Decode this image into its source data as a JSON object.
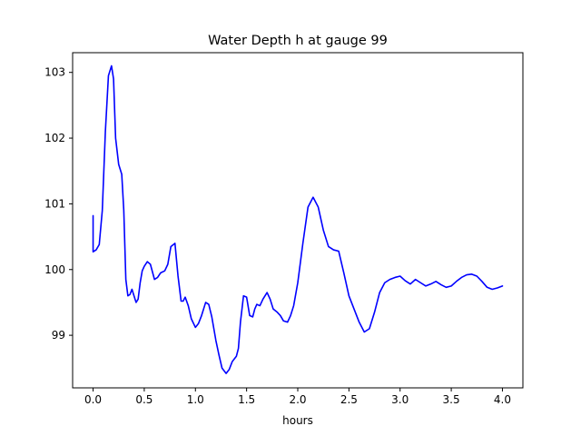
{
  "chart_data": {
    "type": "line",
    "title": "Water Depth h at gauge 99",
    "xlabel": "hours",
    "ylabel": "",
    "xlim": [
      -0.2,
      4.2
    ],
    "ylim": [
      98.2,
      103.3
    ],
    "x_ticks": [
      0.0,
      0.5,
      1.0,
      1.5,
      2.0,
      2.5,
      3.0,
      3.5,
      4.0
    ],
    "x_tick_labels": [
      "0.0",
      "0.5",
      "1.0",
      "1.5",
      "2.0",
      "2.5",
      "3.0",
      "3.5",
      "4.0"
    ],
    "y_ticks": [
      99,
      100,
      101,
      102,
      103
    ],
    "y_tick_labels": [
      "99",
      "100",
      "101",
      "102",
      "103"
    ],
    "grid": false,
    "series": [
      {
        "color": "#0000ff",
        "x": [
          0.0,
          0.0,
          0.03,
          0.06,
          0.09,
          0.12,
          0.15,
          0.18,
          0.2,
          0.22,
          0.25,
          0.28,
          0.3,
          0.32,
          0.34,
          0.36,
          0.38,
          0.4,
          0.42,
          0.44,
          0.46,
          0.48,
          0.5,
          0.53,
          0.56,
          0.6,
          0.63,
          0.66,
          0.7,
          0.73,
          0.76,
          0.8,
          0.83,
          0.86,
          0.88,
          0.9,
          0.93,
          0.96,
          1.0,
          1.03,
          1.06,
          1.1,
          1.13,
          1.16,
          1.2,
          1.23,
          1.26,
          1.3,
          1.33,
          1.36,
          1.38,
          1.4,
          1.42,
          1.44,
          1.47,
          1.5,
          1.53,
          1.56,
          1.58,
          1.6,
          1.63,
          1.66,
          1.7,
          1.73,
          1.76,
          1.8,
          1.83,
          1.86,
          1.9,
          1.93,
          1.96,
          2.0,
          2.05,
          2.1,
          2.15,
          2.2,
          2.25,
          2.3,
          2.35,
          2.4,
          2.45,
          2.5,
          2.55,
          2.6,
          2.65,
          2.7,
          2.75,
          2.8,
          2.85,
          2.9,
          2.95,
          3.0,
          3.05,
          3.1,
          3.15,
          3.2,
          3.25,
          3.3,
          3.35,
          3.4,
          3.45,
          3.5,
          3.55,
          3.6,
          3.65,
          3.7,
          3.75,
          3.8,
          3.85,
          3.9,
          3.95,
          4.0
        ],
        "y": [
          100.82,
          100.27,
          100.3,
          100.38,
          100.9,
          102.1,
          102.95,
          103.1,
          102.9,
          102.0,
          101.6,
          101.45,
          100.9,
          99.85,
          99.6,
          99.62,
          99.7,
          99.6,
          99.5,
          99.55,
          99.8,
          99.98,
          100.05,
          100.12,
          100.08,
          99.85,
          99.88,
          99.95,
          99.98,
          100.08,
          100.35,
          100.4,
          99.9,
          99.52,
          99.52,
          99.58,
          99.45,
          99.25,
          99.12,
          99.18,
          99.3,
          99.5,
          99.47,
          99.28,
          98.92,
          98.7,
          98.5,
          98.42,
          98.48,
          98.6,
          98.64,
          98.68,
          98.8,
          99.2,
          99.6,
          99.58,
          99.3,
          99.28,
          99.4,
          99.47,
          99.45,
          99.55,
          99.65,
          99.55,
          99.4,
          99.35,
          99.3,
          99.22,
          99.2,
          99.3,
          99.45,
          99.8,
          100.4,
          100.95,
          101.1,
          100.95,
          100.6,
          100.35,
          100.3,
          100.28,
          99.95,
          99.6,
          99.4,
          99.2,
          99.05,
          99.1,
          99.35,
          99.65,
          99.8,
          99.85,
          99.88,
          99.9,
          99.83,
          99.78,
          99.85,
          99.8,
          99.75,
          99.78,
          99.82,
          99.77,
          99.73,
          99.75,
          99.82,
          99.88,
          99.92,
          99.93,
          99.9,
          99.82,
          99.73,
          99.7,
          99.72,
          99.75
        ]
      }
    ]
  }
}
